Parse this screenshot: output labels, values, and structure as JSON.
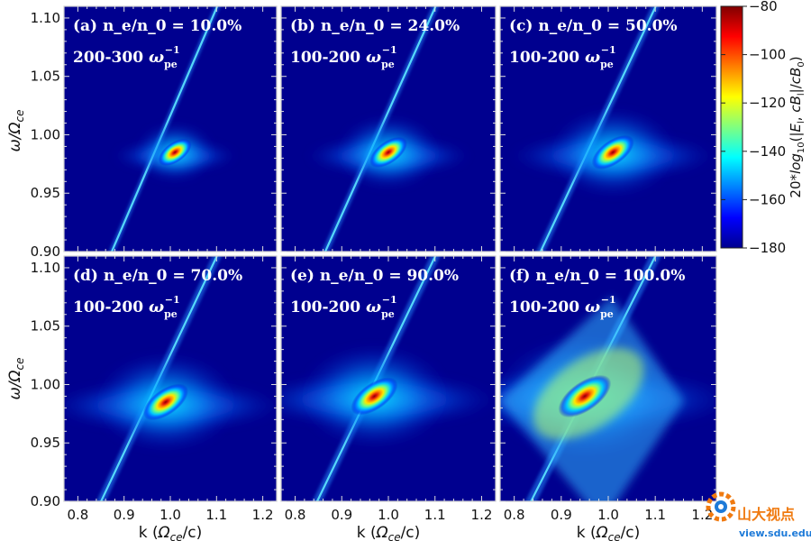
{
  "chart_data": {
    "type": "heatmap",
    "layout": "2x3 grid of panels with shared axes and one colorbar",
    "xlabel": "k (Ω_ce/c)",
    "ylabel": "ω/Ω_ce",
    "xlim": [
      0.77,
      1.23
    ],
    "ylim": [
      0.9,
      1.11
    ],
    "x_ticks": [
      "0.8",
      "0.9",
      "1.0",
      "1.1",
      "1.2"
    ],
    "y_ticks": [
      "0.90",
      "0.95",
      "1.00",
      "1.05",
      "1.10"
    ],
    "colorbar": {
      "label": "20*log10(|E_l, cB_l|/cB_0)",
      "range": [
        -180,
        -80
      ],
      "ticks": [
        "−80",
        "−100",
        "−120",
        "−140",
        "−160",
        "−180"
      ],
      "colormap": "jet"
    },
    "panels": [
      {
        "id": "a",
        "label": "(a)",
        "ratio": "n_e/n_0 = 10.0%",
        "time": "200-300",
        "center": [
          1.01,
          0.985
        ],
        "spread": 1.0
      },
      {
        "id": "b",
        "label": "(b)",
        "ratio": "n_e/n_0 = 24.0%",
        "time": "100-200",
        "center": [
          1.0,
          0.985
        ],
        "spread": 1.6
      },
      {
        "id": "c",
        "label": "(c)",
        "ratio": "n_e/n_0 = 50.0%",
        "time": "100-200",
        "center": [
          1.01,
          0.985
        ],
        "spread": 2.2
      },
      {
        "id": "d",
        "label": "(d)",
        "ratio": "n_e/n_0 = 70.0%",
        "time": "100-200",
        "center": [
          0.99,
          0.985
        ],
        "spread": 2.6
      },
      {
        "id": "e",
        "label": "(e)",
        "ratio": "n_e/n_0 = 90.0%",
        "time": "100-200",
        "center": [
          0.97,
          0.99
        ],
        "spread": 2.8
      },
      {
        "id": "f",
        "label": "(f)",
        "ratio": "n_e/n_0 = 100.0%",
        "time": "100-200",
        "center": [
          0.95,
          0.99
        ],
        "spread": 3.6
      }
    ]
  },
  "watermark": {
    "name": "山大视点",
    "url": "view.sdu.edu.cn",
    "logo_icon": "sdu-logo-icon"
  },
  "colors": {
    "background_field": "#00008f",
    "panel_text": "#ffffff",
    "watermark_orange": "#f07a10",
    "watermark_blue": "#1d7ad8"
  }
}
